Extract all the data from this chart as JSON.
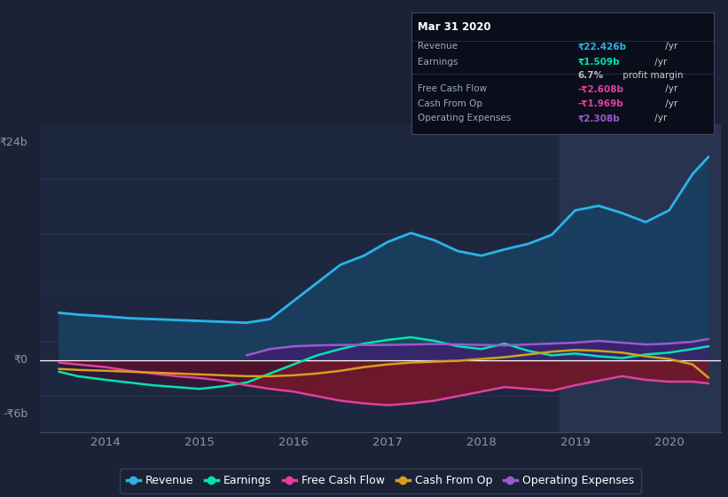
{
  "bg_color": "#1b2236",
  "plot_bg_color": "#1e2740",
  "highlight_bg": "#28334f",
  "ylim": [
    -8,
    26
  ],
  "xlim": [
    2013.3,
    2020.55
  ],
  "y0_label": "₹0",
  "y24_label": "₹24b",
  "yn6_label": "-₹6b",
  "x_ticks": [
    2014,
    2015,
    2016,
    2017,
    2018,
    2019,
    2020
  ],
  "highlight_start": 2018.83,
  "highlight_end": 2020.55,
  "revenue_color": "#29b5e8",
  "earnings_color": "#00e5b0",
  "fcf_color": "#e040a0",
  "cashfromop_color": "#d4a020",
  "opex_color": "#9b59d0",
  "revenue_fill": "#1a4060",
  "tooltip_bg": "#0a0d1a",
  "tooltip_border": "#3a4060",
  "tooltip_title": "Mar 31 2020",
  "legend_bg": "#1b2236",
  "legend_border": "#3a4a65",
  "grid_color": "#2a3550",
  "revenue_x": [
    2013.5,
    2013.7,
    2014.0,
    2014.25,
    2014.5,
    2014.75,
    2015.0,
    2015.25,
    2015.5,
    2015.75,
    2016.0,
    2016.25,
    2016.5,
    2016.75,
    2017.0,
    2017.25,
    2017.5,
    2017.75,
    2018.0,
    2018.25,
    2018.5,
    2018.75,
    2019.0,
    2019.25,
    2019.5,
    2019.75,
    2020.0,
    2020.25,
    2020.42
  ],
  "revenue_y": [
    5.2,
    5.0,
    4.8,
    4.6,
    4.5,
    4.4,
    4.3,
    4.2,
    4.1,
    4.5,
    6.5,
    8.5,
    10.5,
    11.5,
    13.0,
    14.0,
    13.2,
    12.0,
    11.5,
    12.2,
    12.8,
    13.8,
    16.5,
    17.0,
    16.2,
    15.2,
    16.5,
    20.5,
    22.4
  ],
  "earnings_x": [
    2013.5,
    2013.7,
    2014.0,
    2014.25,
    2014.5,
    2014.75,
    2015.0,
    2015.25,
    2015.5,
    2015.75,
    2016.0,
    2016.25,
    2016.5,
    2016.75,
    2017.0,
    2017.25,
    2017.5,
    2017.75,
    2018.0,
    2018.25,
    2018.5,
    2018.75,
    2019.0,
    2019.25,
    2019.5,
    2019.75,
    2020.0,
    2020.25,
    2020.42
  ],
  "earnings_y": [
    -1.3,
    -1.8,
    -2.2,
    -2.5,
    -2.8,
    -3.0,
    -3.2,
    -2.9,
    -2.5,
    -1.5,
    -0.5,
    0.5,
    1.2,
    1.8,
    2.2,
    2.5,
    2.1,
    1.5,
    1.2,
    1.8,
    1.0,
    0.5,
    0.7,
    0.4,
    0.2,
    0.6,
    0.8,
    1.2,
    1.5
  ],
  "fcf_x": [
    2013.5,
    2013.7,
    2014.0,
    2014.25,
    2014.5,
    2014.75,
    2015.0,
    2015.25,
    2015.5,
    2015.75,
    2016.0,
    2016.25,
    2016.5,
    2016.75,
    2017.0,
    2017.25,
    2017.5,
    2017.75,
    2018.0,
    2018.25,
    2018.5,
    2018.75,
    2019.0,
    2019.25,
    2019.5,
    2019.75,
    2020.0,
    2020.25,
    2020.42
  ],
  "fcf_y": [
    -0.3,
    -0.5,
    -0.8,
    -1.2,
    -1.5,
    -1.8,
    -2.0,
    -2.3,
    -2.8,
    -3.2,
    -3.5,
    -4.0,
    -4.5,
    -4.8,
    -5.0,
    -4.8,
    -4.5,
    -4.0,
    -3.5,
    -3.0,
    -3.2,
    -3.4,
    -2.8,
    -2.3,
    -1.8,
    -2.2,
    -2.4,
    -2.4,
    -2.6
  ],
  "cashop_x": [
    2013.5,
    2013.7,
    2014.0,
    2014.25,
    2014.5,
    2014.75,
    2015.0,
    2015.25,
    2015.5,
    2015.75,
    2016.0,
    2016.25,
    2016.5,
    2016.75,
    2017.0,
    2017.25,
    2017.5,
    2017.75,
    2018.0,
    2018.25,
    2018.5,
    2018.75,
    2019.0,
    2019.25,
    2019.5,
    2019.75,
    2020.0,
    2020.25,
    2020.42
  ],
  "cashop_y": [
    -1.0,
    -1.1,
    -1.2,
    -1.3,
    -1.4,
    -1.5,
    -1.6,
    -1.7,
    -1.8,
    -1.8,
    -1.7,
    -1.5,
    -1.2,
    -0.8,
    -0.5,
    -0.3,
    -0.2,
    -0.1,
    0.1,
    0.3,
    0.6,
    0.9,
    1.1,
    1.0,
    0.8,
    0.4,
    0.1,
    -0.5,
    -1.97
  ],
  "opex_x": [
    2015.5,
    2015.75,
    2016.0,
    2016.25,
    2016.5,
    2016.75,
    2017.0,
    2017.25,
    2017.5,
    2017.75,
    2018.0,
    2018.25,
    2018.5,
    2018.75,
    2019.0,
    2019.25,
    2019.5,
    2019.75,
    2020.0,
    2020.25,
    2020.42
  ],
  "opex_y": [
    0.5,
    1.2,
    1.5,
    1.6,
    1.65,
    1.65,
    1.65,
    1.7,
    1.75,
    1.7,
    1.65,
    1.6,
    1.7,
    1.8,
    1.9,
    2.1,
    1.9,
    1.7,
    1.8,
    2.0,
    2.31
  ]
}
